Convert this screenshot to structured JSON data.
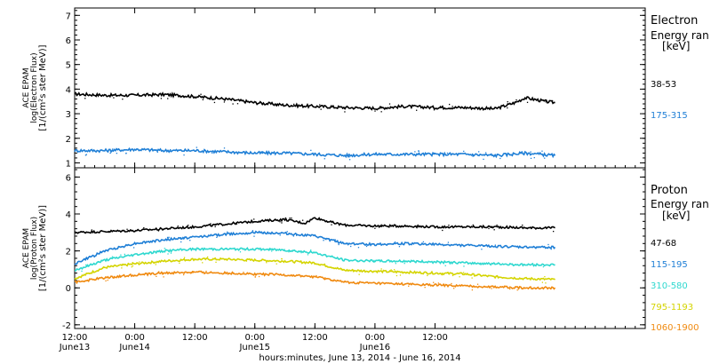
{
  "chart_data": [
    {
      "type": "scatter",
      "panel": "electron",
      "ylabel": [
        "ACE EPAM",
        "log(Electron Flux)",
        "[1/(cm²s ster MeV)]"
      ],
      "yticks": [
        "1",
        "2",
        "3",
        "4",
        "5",
        "6",
        "7"
      ],
      "ylim": [
        0.8,
        7.3
      ],
      "legend_title": [
        "Electron",
        "Energy ran",
        "[keV]"
      ],
      "series": [
        {
          "name": "38-53",
          "color": "#000000",
          "x": [
            0,
            6,
            12,
            18,
            24,
            30,
            36,
            42,
            48,
            54,
            60,
            66,
            72,
            78,
            84,
            88,
            90,
            94,
            96
          ],
          "values": [
            3.8,
            3.75,
            3.75,
            3.78,
            3.7,
            3.6,
            3.45,
            3.35,
            3.3,
            3.25,
            3.22,
            3.3,
            3.25,
            3.25,
            3.2,
            3.45,
            3.65,
            3.5,
            3.45
          ]
        },
        {
          "name": "175-315",
          "color": "#1f7fd6",
          "x": [
            0,
            6,
            12,
            18,
            24,
            30,
            36,
            42,
            48,
            54,
            60,
            66,
            72,
            78,
            84,
            90,
            96
          ],
          "values": [
            1.5,
            1.5,
            1.55,
            1.5,
            1.5,
            1.45,
            1.4,
            1.4,
            1.35,
            1.3,
            1.35,
            1.35,
            1.35,
            1.35,
            1.3,
            1.4,
            1.3
          ]
        }
      ]
    },
    {
      "type": "scatter",
      "panel": "proton",
      "ylabel": [
        "ACE EPAM",
        "log(Proton Flux)",
        "[1/(cm²s ster MeV)]"
      ],
      "yticks": [
        "-2",
        "0",
        "2",
        "4",
        "6"
      ],
      "ylim": [
        -2.2,
        6.5
      ],
      "legend_title": [
        "Proton",
        "Energy ran",
        "[keV]"
      ],
      "series": [
        {
          "name": "47-68",
          "color": "#000000",
          "x": [
            0,
            6,
            12,
            18,
            24,
            30,
            36,
            42,
            46,
            48,
            52,
            54,
            60,
            66,
            72,
            78,
            84,
            90,
            96
          ],
          "values": [
            3.0,
            3.05,
            3.1,
            3.2,
            3.3,
            3.45,
            3.6,
            3.7,
            3.5,
            3.8,
            3.5,
            3.4,
            3.35,
            3.35,
            3.3,
            3.3,
            3.3,
            3.25,
            3.25
          ]
        },
        {
          "name": "115-195",
          "color": "#1f7fd6",
          "x": [
            0,
            6,
            12,
            18,
            24,
            30,
            36,
            42,
            48,
            54,
            60,
            66,
            72,
            78,
            84,
            90,
            96
          ],
          "values": [
            1.3,
            2.0,
            2.4,
            2.6,
            2.75,
            2.9,
            3.0,
            2.95,
            2.8,
            2.4,
            2.35,
            2.4,
            2.35,
            2.3,
            2.25,
            2.2,
            2.2
          ]
        },
        {
          "name": "310-580",
          "color": "#2ed8cf",
          "x": [
            0,
            6,
            12,
            18,
            24,
            30,
            36,
            42,
            48,
            54,
            60,
            66,
            72,
            78,
            84,
            90,
            96
          ],
          "values": [
            0.95,
            1.5,
            1.8,
            2.0,
            2.1,
            2.1,
            2.1,
            2.05,
            1.9,
            1.5,
            1.45,
            1.45,
            1.4,
            1.35,
            1.3,
            1.25,
            1.25
          ]
        },
        {
          "name": "795-1193",
          "color": "#d4d400",
          "x": [
            0,
            6,
            12,
            18,
            24,
            30,
            36,
            42,
            48,
            54,
            60,
            66,
            72,
            78,
            84,
            90,
            96
          ],
          "values": [
            0.5,
            1.1,
            1.3,
            1.45,
            1.55,
            1.55,
            1.5,
            1.45,
            1.35,
            0.95,
            0.9,
            0.85,
            0.8,
            0.75,
            0.6,
            0.5,
            0.45
          ]
        },
        {
          "name": "1060-1900",
          "color": "#f08a10",
          "x": [
            0,
            6,
            12,
            18,
            24,
            30,
            36,
            42,
            48,
            54,
            60,
            66,
            72,
            78,
            84,
            90,
            96
          ],
          "values": [
            0.3,
            0.55,
            0.7,
            0.8,
            0.85,
            0.8,
            0.75,
            0.7,
            0.6,
            0.3,
            0.25,
            0.2,
            0.15,
            0.1,
            0.05,
            0.0,
            0.0
          ]
        }
      ]
    }
  ],
  "xaxis": {
    "xlim": [
      0,
      114
    ],
    "major_ticks": [
      {
        "x": 0,
        "time": "12:00",
        "date": "June13"
      },
      {
        "x": 12,
        "time": "0:00",
        "date": "June14"
      },
      {
        "x": 24,
        "time": "12:00",
        "date": ""
      },
      {
        "x": 36,
        "time": "0:00",
        "date": "June15"
      },
      {
        "x": 48,
        "time": "12:00",
        "date": ""
      },
      {
        "x": 60,
        "time": "0:00",
        "date": "June16"
      },
      {
        "x": 72,
        "time": "12:00",
        "date": ""
      }
    ],
    "xlabel": "hours:minutes, June 13, 2014 - June 16, 2014"
  }
}
